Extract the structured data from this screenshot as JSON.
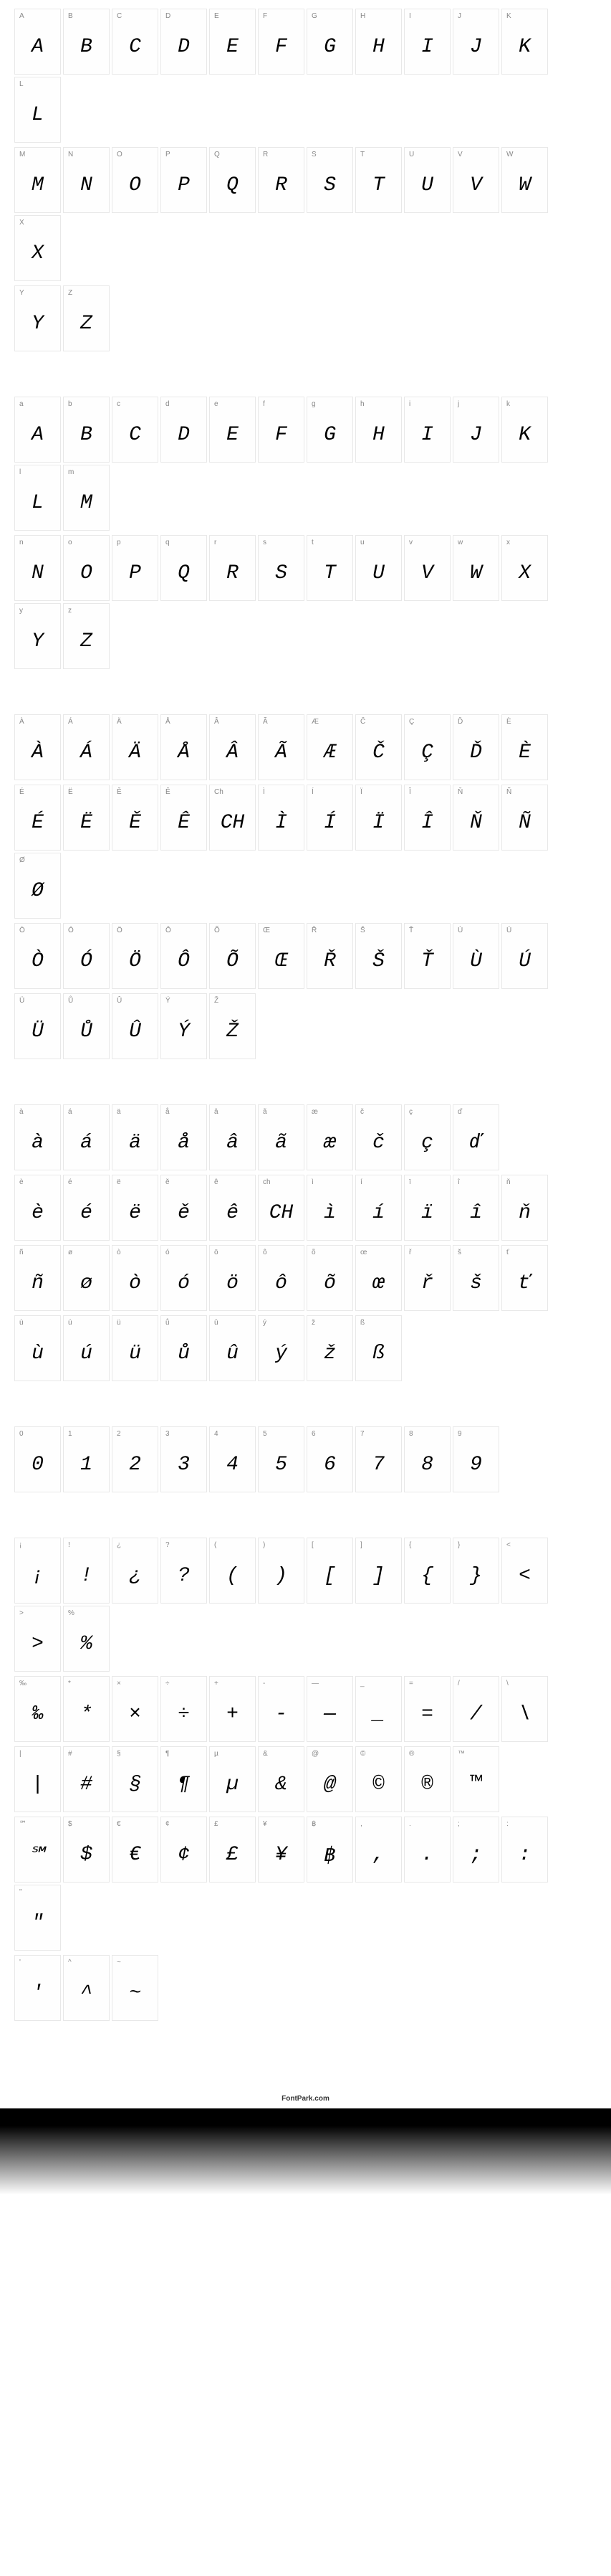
{
  "footer": "FontPark.com",
  "sections": [
    {
      "rows": [
        [
          {
            "label": "A",
            "glyph": "A"
          },
          {
            "label": "B",
            "glyph": "B"
          },
          {
            "label": "C",
            "glyph": "C"
          },
          {
            "label": "D",
            "glyph": "D"
          },
          {
            "label": "E",
            "glyph": "E"
          },
          {
            "label": "F",
            "glyph": "F"
          },
          {
            "label": "G",
            "glyph": "G"
          },
          {
            "label": "H",
            "glyph": "H"
          },
          {
            "label": "I",
            "glyph": "I"
          },
          {
            "label": "J",
            "glyph": "J"
          },
          {
            "label": "K",
            "glyph": "K"
          },
          {
            "label": "L",
            "glyph": "L"
          }
        ],
        [
          {
            "label": "M",
            "glyph": "M"
          },
          {
            "label": "N",
            "glyph": "N"
          },
          {
            "label": "O",
            "glyph": "O"
          },
          {
            "label": "P",
            "glyph": "P"
          },
          {
            "label": "Q",
            "glyph": "Q"
          },
          {
            "label": "R",
            "glyph": "R"
          },
          {
            "label": "S",
            "glyph": "S"
          },
          {
            "label": "T",
            "glyph": "T"
          },
          {
            "label": "U",
            "glyph": "U"
          },
          {
            "label": "V",
            "glyph": "V"
          },
          {
            "label": "W",
            "glyph": "W"
          },
          {
            "label": "X",
            "glyph": "X"
          }
        ],
        [
          {
            "label": "Y",
            "glyph": "Y"
          },
          {
            "label": "Z",
            "glyph": "Z"
          }
        ]
      ]
    },
    {
      "rows": [
        [
          {
            "label": "a",
            "glyph": "A"
          },
          {
            "label": "b",
            "glyph": "B"
          },
          {
            "label": "c",
            "glyph": "C"
          },
          {
            "label": "d",
            "glyph": "D"
          },
          {
            "label": "e",
            "glyph": "E"
          },
          {
            "label": "f",
            "glyph": "F"
          },
          {
            "label": "g",
            "glyph": "G"
          },
          {
            "label": "h",
            "glyph": "H"
          },
          {
            "label": "i",
            "glyph": "I"
          },
          {
            "label": "j",
            "glyph": "J"
          },
          {
            "label": "k",
            "glyph": "K"
          },
          {
            "label": "l",
            "glyph": "L"
          },
          {
            "label": "m",
            "glyph": "M"
          }
        ],
        [
          {
            "label": "n",
            "glyph": "N"
          },
          {
            "label": "o",
            "glyph": "O"
          },
          {
            "label": "p",
            "glyph": "P"
          },
          {
            "label": "q",
            "glyph": "Q"
          },
          {
            "label": "r",
            "glyph": "R"
          },
          {
            "label": "s",
            "glyph": "S"
          },
          {
            "label": "t",
            "glyph": "T"
          },
          {
            "label": "u",
            "glyph": "U"
          },
          {
            "label": "v",
            "glyph": "V"
          },
          {
            "label": "w",
            "glyph": "W"
          },
          {
            "label": "x",
            "glyph": "X"
          },
          {
            "label": "y",
            "glyph": "Y"
          },
          {
            "label": "z",
            "glyph": "Z"
          }
        ]
      ]
    },
    {
      "rows": [
        [
          {
            "label": "À",
            "glyph": "À"
          },
          {
            "label": "Á",
            "glyph": "Á"
          },
          {
            "label": "Ä",
            "glyph": "Ä"
          },
          {
            "label": "Å",
            "glyph": "Å"
          },
          {
            "label": "Â",
            "glyph": "Â"
          },
          {
            "label": "Ã",
            "glyph": "Ã"
          },
          {
            "label": "Æ",
            "glyph": "Æ"
          },
          {
            "label": "Č",
            "glyph": "Č"
          },
          {
            "label": "Ç",
            "glyph": "Ç"
          },
          {
            "label": "Ď",
            "glyph": "Ď"
          },
          {
            "label": "È",
            "glyph": "È"
          }
        ],
        [
          {
            "label": "É",
            "glyph": "É"
          },
          {
            "label": "Ë",
            "glyph": "Ë"
          },
          {
            "label": "Ě",
            "glyph": "Ě"
          },
          {
            "label": "Ê",
            "glyph": "Ê"
          },
          {
            "label": "Ch",
            "glyph": "CH"
          },
          {
            "label": "Ì",
            "glyph": "Ì"
          },
          {
            "label": "Í",
            "glyph": "Í"
          },
          {
            "label": "Ï",
            "glyph": "Ï"
          },
          {
            "label": "Î",
            "glyph": "Î"
          },
          {
            "label": "Ň",
            "glyph": "Ň"
          },
          {
            "label": "Ñ",
            "glyph": "Ñ"
          },
          {
            "label": "Ø",
            "glyph": "Ø"
          }
        ],
        [
          {
            "label": "Ò",
            "glyph": "Ò"
          },
          {
            "label": "Ó",
            "glyph": "Ó"
          },
          {
            "label": "Ö",
            "glyph": "Ö"
          },
          {
            "label": "Ô",
            "glyph": "Ô"
          },
          {
            "label": "Õ",
            "glyph": "Õ"
          },
          {
            "label": "Œ",
            "glyph": "Œ"
          },
          {
            "label": "Ř",
            "glyph": "Ř"
          },
          {
            "label": "Š",
            "glyph": "Š"
          },
          {
            "label": "Ť",
            "glyph": "Ť"
          },
          {
            "label": "Ù",
            "glyph": "Ù"
          },
          {
            "label": "Ú",
            "glyph": "Ú"
          }
        ],
        [
          {
            "label": "Ü",
            "glyph": "Ü"
          },
          {
            "label": "Ů",
            "glyph": "Ů"
          },
          {
            "label": "Û",
            "glyph": "Û"
          },
          {
            "label": "Ý",
            "glyph": "Ý"
          },
          {
            "label": "Ž",
            "glyph": "Ž"
          }
        ]
      ]
    },
    {
      "rows": [
        [
          {
            "label": "à",
            "glyph": "à"
          },
          {
            "label": "á",
            "glyph": "á"
          },
          {
            "label": "ä",
            "glyph": "ä"
          },
          {
            "label": "å",
            "glyph": "å"
          },
          {
            "label": "â",
            "glyph": "â"
          },
          {
            "label": "ã",
            "glyph": "ã"
          },
          {
            "label": "æ",
            "glyph": "æ"
          },
          {
            "label": "č",
            "glyph": "č"
          },
          {
            "label": "ç",
            "glyph": "ç"
          },
          {
            "label": "ď",
            "glyph": "ď"
          }
        ],
        [
          {
            "label": "è",
            "glyph": "è"
          },
          {
            "label": "é",
            "glyph": "é"
          },
          {
            "label": "ë",
            "glyph": "ë"
          },
          {
            "label": "ě",
            "glyph": "ě"
          },
          {
            "label": "ê",
            "glyph": "ê"
          },
          {
            "label": "ch",
            "glyph": "CH"
          },
          {
            "label": "ì",
            "glyph": "ì"
          },
          {
            "label": "í",
            "glyph": "í"
          },
          {
            "label": "ï",
            "glyph": "ï"
          },
          {
            "label": "î",
            "glyph": "î"
          },
          {
            "label": "ň",
            "glyph": "ň"
          }
        ],
        [
          {
            "label": "ñ",
            "glyph": "ñ"
          },
          {
            "label": "ø",
            "glyph": "ø"
          },
          {
            "label": "ò",
            "glyph": "ò"
          },
          {
            "label": "ó",
            "glyph": "ó"
          },
          {
            "label": "ö",
            "glyph": "ö"
          },
          {
            "label": "ô",
            "glyph": "ô"
          },
          {
            "label": "õ",
            "glyph": "õ"
          },
          {
            "label": "œ",
            "glyph": "œ"
          },
          {
            "label": "ř",
            "glyph": "ř"
          },
          {
            "label": "š",
            "glyph": "š"
          },
          {
            "label": "ť",
            "glyph": "ť"
          }
        ],
        [
          {
            "label": "ù",
            "glyph": "ù"
          },
          {
            "label": "ú",
            "glyph": "ú"
          },
          {
            "label": "ü",
            "glyph": "ü"
          },
          {
            "label": "ů",
            "glyph": "ů"
          },
          {
            "label": "û",
            "glyph": "û"
          },
          {
            "label": "ý",
            "glyph": "ý"
          },
          {
            "label": "ž",
            "glyph": "ž"
          },
          {
            "label": "ß",
            "glyph": "ß"
          }
        ]
      ]
    },
    {
      "rows": [
        [
          {
            "label": "0",
            "glyph": "0"
          },
          {
            "label": "1",
            "glyph": "1"
          },
          {
            "label": "2",
            "glyph": "2"
          },
          {
            "label": "3",
            "glyph": "3"
          },
          {
            "label": "4",
            "glyph": "4"
          },
          {
            "label": "5",
            "glyph": "5"
          },
          {
            "label": "6",
            "glyph": "6"
          },
          {
            "label": "7",
            "glyph": "7"
          },
          {
            "label": "8",
            "glyph": "8"
          },
          {
            "label": "9",
            "glyph": "9"
          }
        ]
      ]
    },
    {
      "rows": [
        [
          {
            "label": "¡",
            "glyph": "¡"
          },
          {
            "label": "!",
            "glyph": "!"
          },
          {
            "label": "¿",
            "glyph": "¿"
          },
          {
            "label": "?",
            "glyph": "?"
          },
          {
            "label": "(",
            "glyph": "("
          },
          {
            "label": ")",
            "glyph": ")"
          },
          {
            "label": "[",
            "glyph": "["
          },
          {
            "label": "]",
            "glyph": "]"
          },
          {
            "label": "{",
            "glyph": "{"
          },
          {
            "label": "}",
            "glyph": "}"
          },
          {
            "label": "<",
            "glyph": "<"
          },
          {
            "label": ">",
            "glyph": ">"
          },
          {
            "label": "%",
            "glyph": "%"
          }
        ],
        [
          {
            "label": "‰",
            "glyph": "‰"
          },
          {
            "label": "*",
            "glyph": "*"
          },
          {
            "label": "×",
            "glyph": "×"
          },
          {
            "label": "÷",
            "glyph": "÷"
          },
          {
            "label": "+",
            "glyph": "+"
          },
          {
            "label": "-",
            "glyph": "-"
          },
          {
            "label": "—",
            "glyph": "—"
          },
          {
            "label": "_",
            "glyph": "_"
          },
          {
            "label": "=",
            "glyph": "="
          },
          {
            "label": "/",
            "glyph": "/"
          },
          {
            "label": "\\",
            "glyph": "\\"
          }
        ],
        [
          {
            "label": "|",
            "glyph": "|"
          },
          {
            "label": "#",
            "glyph": "#"
          },
          {
            "label": "§",
            "glyph": "§"
          },
          {
            "label": "¶",
            "glyph": "¶"
          },
          {
            "label": "µ",
            "glyph": "µ"
          },
          {
            "label": "&",
            "glyph": "&"
          },
          {
            "label": "@",
            "glyph": "@"
          },
          {
            "label": "©",
            "glyph": "©"
          },
          {
            "label": "®",
            "glyph": "®"
          },
          {
            "label": "™",
            "glyph": "™"
          }
        ],
        [
          {
            "label": "℠",
            "glyph": "℠"
          },
          {
            "label": "$",
            "glyph": "$"
          },
          {
            "label": "€",
            "glyph": "€"
          },
          {
            "label": "¢",
            "glyph": "¢"
          },
          {
            "label": "£",
            "glyph": "£"
          },
          {
            "label": "¥",
            "glyph": "¥"
          },
          {
            "label": "฿",
            "glyph": "฿"
          },
          {
            "label": ",",
            "glyph": ","
          },
          {
            "label": ".",
            "glyph": "."
          },
          {
            "label": ";",
            "glyph": ";"
          },
          {
            "label": ":",
            "glyph": ":"
          },
          {
            "label": "\"",
            "glyph": "\""
          }
        ],
        [
          {
            "label": "'",
            "glyph": "'"
          },
          {
            "label": "^",
            "glyph": "^"
          },
          {
            "label": "~",
            "glyph": "~"
          }
        ]
      ]
    }
  ]
}
